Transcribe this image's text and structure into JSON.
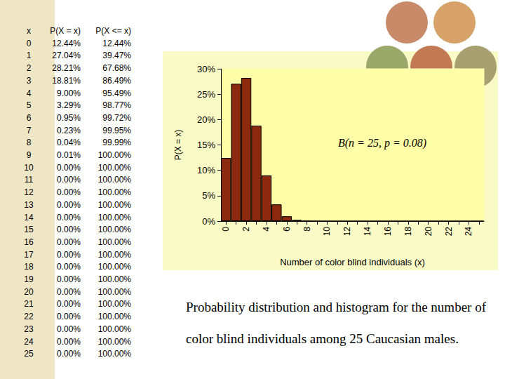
{
  "chart_data": {
    "type": "bar",
    "annotation": "B(n = 25, p = 0.08)",
    "x_label": "Number of color blind individuals (x)",
    "y_label": "P(X = x)",
    "categories": [
      "0",
      null,
      "2",
      null,
      "4",
      null,
      "6",
      null,
      "8",
      null,
      "10",
      null,
      "12",
      null,
      "14",
      null,
      "16",
      null,
      "18",
      null,
      "20",
      null,
      "22",
      null,
      "24",
      null
    ],
    "values": [
      12.44,
      27.04,
      28.21,
      18.81,
      9.0,
      3.29,
      0.95,
      0.23,
      0.04,
      0.01,
      0,
      0,
      0,
      0,
      0,
      0,
      0,
      0,
      0,
      0,
      0,
      0,
      0,
      0,
      0,
      0
    ],
    "color": "#8b2a0e",
    "ylim": [
      0,
      30
    ],
    "yticks": [
      {
        "value": 0,
        "label": "0%"
      },
      {
        "value": 5,
        "label": "5%"
      },
      {
        "value": 10,
        "label": "10%"
      },
      {
        "value": 15,
        "label": "15%"
      },
      {
        "value": 20,
        "label": "20%"
      },
      {
        "value": 25,
        "label": "25%"
      },
      {
        "value": 30,
        "label": "30%"
      }
    ],
    "grid": false
  },
  "table": {
    "columns": [
      "x",
      "P(X = x)",
      "P(X <= x)"
    ],
    "rows": [
      [
        "0",
        "12.44%",
        "12.44%"
      ],
      [
        "1",
        "27.04%",
        "39.47%"
      ],
      [
        "2",
        "28.21%",
        "67.68%"
      ],
      [
        "3",
        "18.81%",
        "86.49%"
      ],
      [
        "4",
        "9.00%",
        "95.49%"
      ],
      [
        "5",
        "3.29%",
        "98.77%"
      ],
      [
        "6",
        "0.95%",
        "99.72%"
      ],
      [
        "7",
        "0.23%",
        "99.95%"
      ],
      [
        "8",
        "0.04%",
        "99.99%"
      ],
      [
        "9",
        "0.01%",
        "100.00%"
      ],
      [
        "10",
        "0.00%",
        "100.00%"
      ],
      [
        "11",
        "0.00%",
        "100.00%"
      ],
      [
        "12",
        "0.00%",
        "100.00%"
      ],
      [
        "13",
        "0.00%",
        "100.00%"
      ],
      [
        "14",
        "0.00%",
        "100.00%"
      ],
      [
        "15",
        "0.00%",
        "100.00%"
      ],
      [
        "16",
        "0.00%",
        "100.00%"
      ],
      [
        "17",
        "0.00%",
        "100.00%"
      ],
      [
        "18",
        "0.00%",
        "100.00%"
      ],
      [
        "19",
        "0.00%",
        "100.00%"
      ],
      [
        "20",
        "0.00%",
        "100.00%"
      ],
      [
        "21",
        "0.00%",
        "100.00%"
      ],
      [
        "22",
        "0.00%",
        "100.00%"
      ],
      [
        "23",
        "0.00%",
        "100.00%"
      ],
      [
        "24",
        "0.00%",
        "100.00%"
      ],
      [
        "25",
        "0.00%",
        "100.00%"
      ]
    ]
  },
  "caption": "Probability distribution and histogram for the number of color blind individuals among 25 Caucasian males."
}
